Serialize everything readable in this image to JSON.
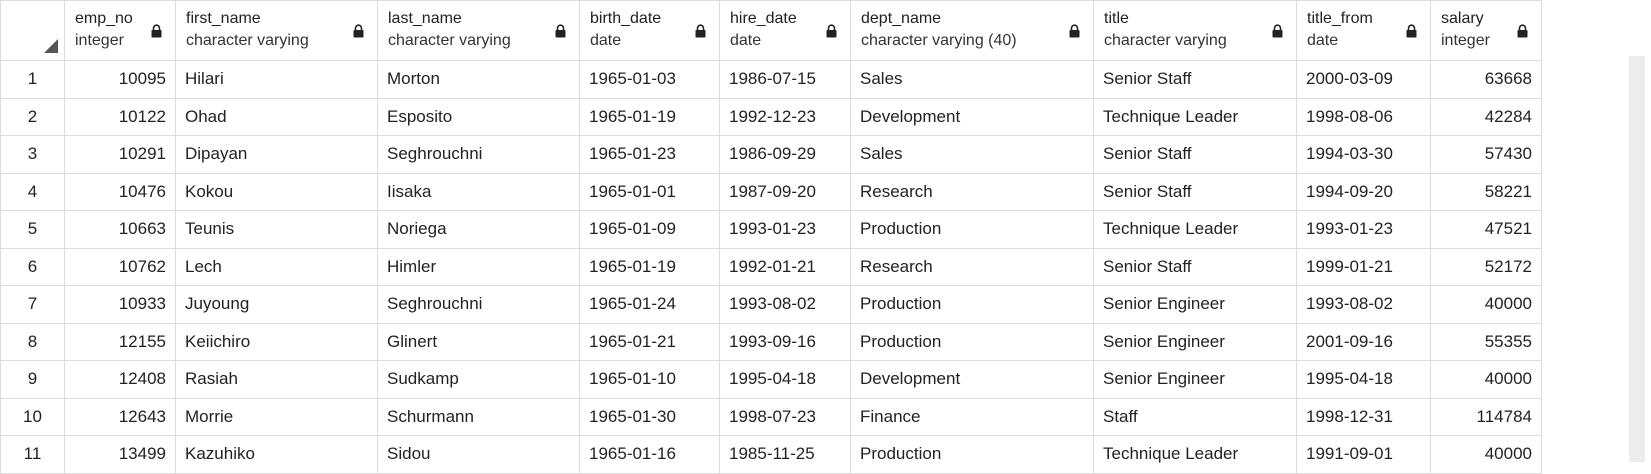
{
  "columns": [
    {
      "name": "emp_no",
      "type": "integer",
      "align": "right"
    },
    {
      "name": "first_name",
      "type": "character varying",
      "align": "left"
    },
    {
      "name": "last_name",
      "type": "character varying",
      "align": "left"
    },
    {
      "name": "birth_date",
      "type": "date",
      "align": "left"
    },
    {
      "name": "hire_date",
      "type": "date",
      "align": "left"
    },
    {
      "name": "dept_name",
      "type": "character varying (40)",
      "align": "left"
    },
    {
      "name": "title",
      "type": "character varying",
      "align": "left"
    },
    {
      "name": "title_from",
      "type": "date",
      "align": "left"
    },
    {
      "name": "salary",
      "type": "integer",
      "align": "right"
    }
  ],
  "rows": [
    {
      "num": "1",
      "cells": [
        "10095",
        "Hilari",
        "Morton",
        "1965-01-03",
        "1986-07-15",
        "Sales",
        "Senior Staff",
        "2000-03-09",
        "63668"
      ]
    },
    {
      "num": "2",
      "cells": [
        "10122",
        "Ohad",
        "Esposito",
        "1965-01-19",
        "1992-12-23",
        "Development",
        "Technique Leader",
        "1998-08-06",
        "42284"
      ]
    },
    {
      "num": "3",
      "cells": [
        "10291",
        "Dipayan",
        "Seghrouchni",
        "1965-01-23",
        "1986-09-29",
        "Sales",
        "Senior Staff",
        "1994-03-30",
        "57430"
      ]
    },
    {
      "num": "4",
      "cells": [
        "10476",
        "Kokou",
        "Iisaka",
        "1965-01-01",
        "1987-09-20",
        "Research",
        "Senior Staff",
        "1994-09-20",
        "58221"
      ]
    },
    {
      "num": "5",
      "cells": [
        "10663",
        "Teunis",
        "Noriega",
        "1965-01-09",
        "1993-01-23",
        "Production",
        "Technique Leader",
        "1993-01-23",
        "47521"
      ]
    },
    {
      "num": "6",
      "cells": [
        "10762",
        "Lech",
        "Himler",
        "1965-01-19",
        "1992-01-21",
        "Research",
        "Senior Staff",
        "1999-01-21",
        "52172"
      ]
    },
    {
      "num": "7",
      "cells": [
        "10933",
        "Juyoung",
        "Seghrouchni",
        "1965-01-24",
        "1993-08-02",
        "Production",
        "Senior Engineer",
        "1993-08-02",
        "40000"
      ]
    },
    {
      "num": "8",
      "cells": [
        "12155",
        "Keiichiro",
        "Glinert",
        "1965-01-21",
        "1993-09-16",
        "Production",
        "Senior Engineer",
        "2001-09-16",
        "55355"
      ]
    },
    {
      "num": "9",
      "cells": [
        "12408",
        "Rasiah",
        "Sudkamp",
        "1965-01-10",
        "1995-04-18",
        "Development",
        "Senior Engineer",
        "1995-04-18",
        "40000"
      ]
    },
    {
      "num": "10",
      "cells": [
        "12643",
        "Morrie",
        "Schurmann",
        "1965-01-30",
        "1998-07-23",
        "Finance",
        "Staff",
        "1998-12-31",
        "114784"
      ]
    },
    {
      "num": "11",
      "cells": [
        "13499",
        "Kazuhiko",
        "Sidou",
        "1965-01-16",
        "1985-11-25",
        "Production",
        "Technique Leader",
        "1991-09-01",
        "40000"
      ]
    }
  ],
  "icons": {
    "column_lock": "lock-icon",
    "select_all": "select-all-corner-icon"
  },
  "colors": {
    "grid_line": "#dddddd",
    "scrollbar": "#ececec"
  }
}
